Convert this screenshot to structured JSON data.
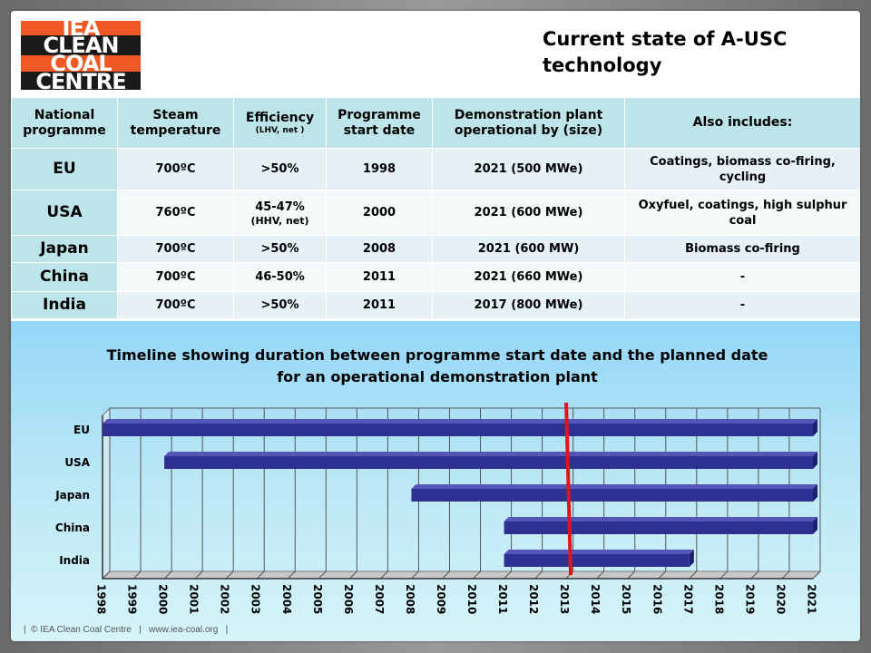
{
  "logo": {
    "line1": "IEA",
    "line2": "CLEAN",
    "line3": "COAL",
    "line4": "CENTRE"
  },
  "title": {
    "line1": "Current state of A-USC",
    "line2": "technology"
  },
  "table": {
    "headers": [
      {
        "main": "National programme",
        "sub": ""
      },
      {
        "main": "Steam temperature",
        "sub": ""
      },
      {
        "main": "Efficiency",
        "sub": "(LHV, net )"
      },
      {
        "main": "Programme start date",
        "sub": ""
      },
      {
        "main": "Demonstration plant operational by (size)",
        "sub": ""
      },
      {
        "main": "Also includes:",
        "sub": ""
      }
    ],
    "rows": [
      {
        "country": "EU",
        "temp": "700ºC",
        "eff": ">50%",
        "eff_sub": "",
        "start": "1998",
        "demo": "2021 (500 MWe)",
        "also": "Coatings, biomass co-firing, cycling"
      },
      {
        "country": "USA",
        "temp": "760ºC",
        "eff": "45-47%",
        "eff_sub": "(HHV, net)",
        "start": "2000",
        "demo": "2021 (600 MWe)",
        "also": "Oxyfuel, coatings, high sulphur coal"
      },
      {
        "country": "Japan",
        "temp": "700ºC",
        "eff": ">50%",
        "eff_sub": "",
        "start": "2008",
        "demo": "2021 (600 MW)",
        "also": "Biomass co-firing"
      },
      {
        "country": "China",
        "temp": "700ºC",
        "eff": "46-50%",
        "eff_sub": "",
        "start": "2011",
        "demo": "2021 (660 MWe)",
        "also": "-"
      },
      {
        "country": "India",
        "temp": "700ºC",
        "eff": ">50%",
        "eff_sub": "",
        "start": "2011",
        "demo": "2017 (800 MWe)",
        "also": "-"
      }
    ]
  },
  "chart_data": {
    "type": "bar",
    "orientation": "horizontal",
    "title": "Timeline showing duration between programme start date and the planned date for an operational demonstration plant",
    "categories": [
      "EU",
      "USA",
      "Japan",
      "China",
      "India"
    ],
    "start": [
      1998,
      2000,
      2008,
      2011,
      2011
    ],
    "end": [
      2021,
      2021,
      2021,
      2021,
      2017
    ],
    "xlim": [
      1998,
      2021
    ],
    "x_ticks": [
      "1998",
      "1999",
      "2000",
      "2001",
      "2002",
      "2003",
      "2004",
      "2005",
      "2006",
      "2007",
      "2008",
      "2009",
      "2010",
      "2011",
      "2012",
      "2013",
      "2014",
      "2015",
      "2016",
      "2017",
      "2018",
      "2019",
      "2020",
      "2021"
    ],
    "current_year_marker": 2013.1,
    "grid": true,
    "bar_color": "#2e3192",
    "marker_color": "#e0141c"
  },
  "footer": "|  © IEA Clean Coal Centre   |   www.iea-coal.org   |"
}
